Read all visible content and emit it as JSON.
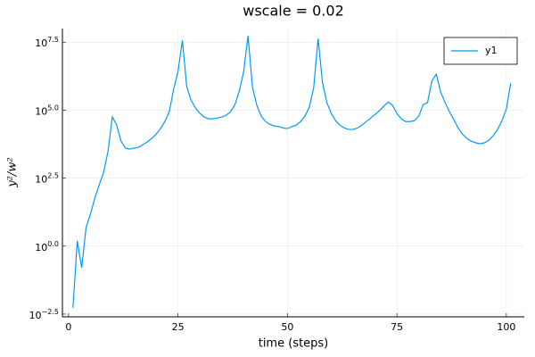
{
  "chart_data": {
    "type": "line",
    "title": "wscale = 0.02",
    "xlabel": "time (steps)",
    "ylabel": "y²/w²",
    "yscale": "log",
    "grid": true,
    "legend": "top-right",
    "xlim": [
      -1.4,
      104.1
    ],
    "xticks": [
      0,
      25,
      50,
      75,
      100
    ],
    "ylim": [
      0.0025118864315095794,
      100000000
    ],
    "yticks": [
      {
        "value": 0.0031622776601683794,
        "label": "10^−2.5"
      },
      {
        "value": 1,
        "label": "10^0.0"
      },
      {
        "value": 316.22776601683796,
        "label": "10^2.5"
      },
      {
        "value": 100000,
        "label": "10^5.0"
      },
      {
        "value": 31622776.60168379,
        "label": "10^7.5"
      }
    ],
    "x": [
      1,
      2,
      3,
      4,
      5,
      6,
      7,
      8,
      9,
      10,
      11,
      12,
      13,
      14,
      15,
      16,
      17,
      18,
      19,
      20,
      21,
      22,
      23,
      24,
      25,
      26,
      27,
      28,
      29,
      30,
      31,
      32,
      33,
      34,
      35,
      36,
      37,
      38,
      39,
      40,
      41,
      42,
      43,
      44,
      45,
      46,
      47,
      48,
      49,
      50,
      51,
      52,
      53,
      54,
      55,
      56,
      57,
      58,
      59,
      60,
      61,
      62,
      63,
      64,
      65,
      66,
      67,
      68,
      69,
      70,
      71,
      72,
      73,
      74,
      75,
      76,
      77,
      78,
      79,
      80,
      81,
      82,
      83,
      84,
      85,
      86,
      87,
      88,
      89,
      90,
      91,
      92,
      93,
      94,
      95,
      96,
      97,
      98,
      99,
      100,
      101
    ],
    "series": [
      {
        "name": "y1",
        "color": "#009af9",
        "values": [
          0.0054,
          1.55,
          0.16,
          4.8,
          15,
          58,
          178,
          513,
          2950,
          56000,
          28000,
          7200,
          4000,
          3700,
          4000,
          4300,
          5400,
          6800,
          9100,
          13000,
          21000,
          38000,
          87000,
          580000,
          2600000,
          37000000,
          720000,
          230000,
          120000,
          76000,
          56000,
          48000,
          48000,
          51000,
          56000,
          65000,
          87000,
          160000,
          500000,
          2600000,
          54000000,
          720000,
          150000,
          60000,
          38000,
          30000,
          26000,
          25000,
          22000,
          21000,
          25000,
          28000,
          38000,
          60000,
          130000,
          680000,
          43000000,
          1050000,
          190000,
          76000,
          41000,
          28000,
          22000,
          19500,
          19500,
          22000,
          28000,
          38000,
          51000,
          69000,
          95000,
          140000,
          200000,
          150000,
          76000,
          48000,
          38000,
          38000,
          41000,
          60000,
          160000,
          190000,
          1200000,
          2100000,
          460000,
          190000,
          87000,
          45000,
          22000,
          13000,
          9100,
          7200,
          6300,
          5800,
          6300,
          7800,
          11500,
          19500,
          41000,
          110000,
          980000
        ]
      }
    ]
  }
}
